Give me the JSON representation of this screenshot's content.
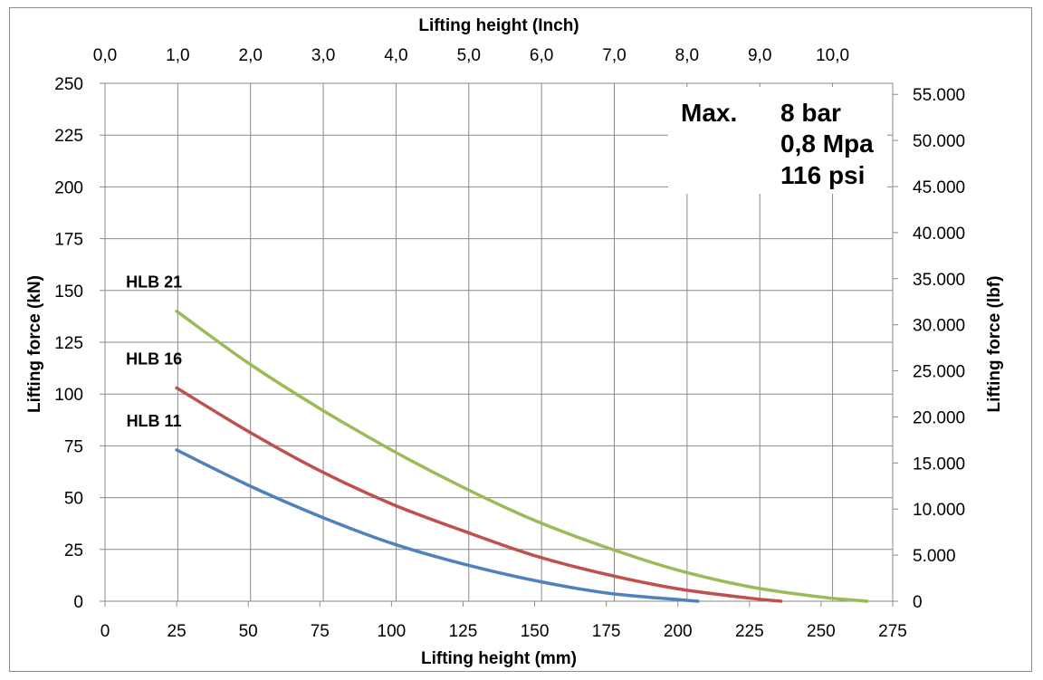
{
  "chart_data": {
    "type": "line",
    "xlabel": "Lifting height (mm)",
    "x2label": "Lifting height (Inch)",
    "ylabel": "Lifting force (kN)",
    "y2label": "Lifting force (lbf)",
    "xlim": [
      0,
      275
    ],
    "ylim": [
      0,
      250
    ],
    "x_ticks": [
      0,
      25,
      50,
      75,
      100,
      125,
      150,
      175,
      200,
      225,
      250,
      275
    ],
    "y_ticks": [
      0,
      25,
      50,
      75,
      100,
      125,
      150,
      175,
      200,
      225,
      250
    ],
    "x2_ticks": [
      "0,0",
      "1,0",
      "2,0",
      "3,0",
      "4,0",
      "5,0",
      "6,0",
      "7,0",
      "8,0",
      "9,0",
      "10,0"
    ],
    "x2_tick_values_inch": [
      0,
      1,
      2,
      3,
      4,
      5,
      6,
      7,
      8,
      9,
      10
    ],
    "y2_ticks": [
      "0",
      "5.000",
      "10.000",
      "15.000",
      "20.000",
      "25.000",
      "30.000",
      "35.000",
      "40.000",
      "45.000",
      "50.000",
      "55.000"
    ],
    "y2_tick_values_lbf": [
      0,
      5000,
      10000,
      15000,
      20000,
      25000,
      30000,
      35000,
      40000,
      45000,
      50000,
      55000
    ],
    "grid": true,
    "series": [
      {
        "name": "HLB 21",
        "color": "#9bbb59",
        "x": [
          25,
          50,
          75,
          100,
          125,
          150,
          175,
          200,
          225,
          250,
          266
        ],
        "y": [
          140,
          115,
          93,
          73,
          55,
          39,
          26,
          15,
          7,
          2,
          0
        ]
      },
      {
        "name": "HLB 16",
        "color": "#c0504d",
        "x": [
          25,
          50,
          75,
          100,
          125,
          150,
          175,
          200,
          225,
          236
        ],
        "y": [
          103,
          82,
          63,
          47,
          34,
          22,
          13,
          6,
          1.5,
          0
        ]
      },
      {
        "name": "HLB 11",
        "color": "#4f81bd",
        "x": [
          25,
          50,
          75,
          100,
          125,
          150,
          175,
          200,
          207
        ],
        "y": [
          73,
          56,
          41,
          28,
          18,
          10,
          4,
          0.8,
          0
        ]
      }
    ],
    "annotation": {
      "label": "Max.",
      "lines": [
        "8 bar",
        "0,8 Mpa",
        "116 psi"
      ]
    }
  }
}
